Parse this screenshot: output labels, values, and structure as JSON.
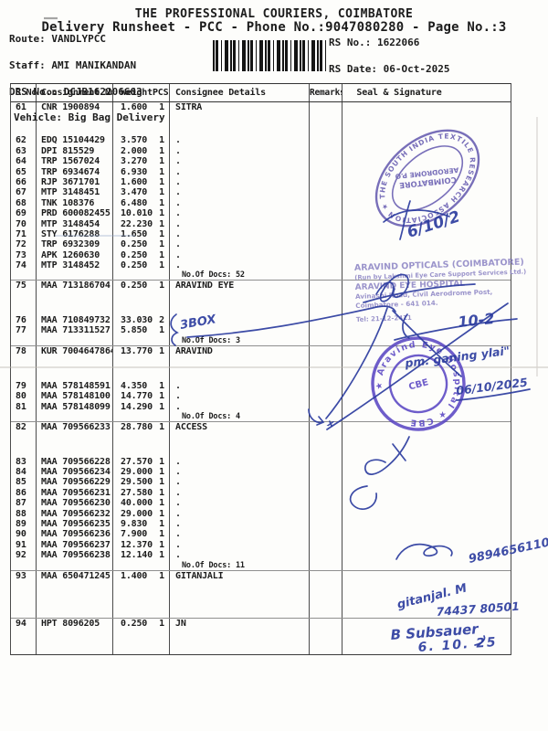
{
  "page_header": {
    "company": "THE PROFESSIONAL COURIERS, COIMBATORE",
    "runsheet_line": "Delivery Runsheet - PCC - Phone No.:9047080280 - Page No.:3",
    "route_label": "Route: ",
    "route_value": "VANDLYPCC",
    "staff_label": "Staff: ",
    "staff_value": "AMI MANIKANDAN",
    "drs_label": "DRS No.: ",
    "drs_value": "DCJB162206603",
    "vehicle_label": "Vehicle: ",
    "vehicle_value": "Big Bag Delivery",
    "rs_no_label": "RS No.: ",
    "rs_no_value": "1622066",
    "rs_date_label": "RS Date: ",
    "rs_date_value": "06-Oct-2025",
    "barcode": "barcode"
  },
  "table": {
    "headers": {
      "sno": "S No",
      "consignment": "Consignment No",
      "weight": "Weight",
      "pcs": "PCS",
      "consignee": "Consignee Details",
      "remarks": "Remarks",
      "seal": "Seal & Signature"
    },
    "groups": [
      {
        "gap_after_first": 25,
        "docs": "No.Of Docs: 52",
        "rows": [
          [
            "61",
            "CNR 1900894",
            "1.600",
            "1",
            "SITRA"
          ],
          [
            "62",
            "EDQ 15104429",
            "3.570",
            "1",
            "."
          ],
          [
            "63",
            "DPI 815529",
            "2.000",
            "1",
            "."
          ],
          [
            "64",
            "TRP 1567024",
            "3.270",
            "1",
            "."
          ],
          [
            "65",
            "TRP 6934674",
            "6.930",
            "1",
            "."
          ],
          [
            "66",
            "RJP 3671701",
            "1.600",
            "1",
            "."
          ],
          [
            "67",
            "MTP 3148451",
            "3.470",
            "1",
            "."
          ],
          [
            "68",
            "TNK 108376",
            "6.480",
            "1",
            "."
          ],
          [
            "69",
            "PRD 600082455",
            "10.010",
            "1",
            "."
          ],
          [
            "70",
            "MTP 3148454",
            "22.230",
            "1",
            "."
          ],
          [
            "71",
            "STY 6176288",
            "1.650",
            "1",
            "."
          ],
          [
            "72",
            "TRP 6932309",
            "0.250",
            "1",
            "."
          ],
          [
            "73",
            "APK 1260630",
            "0.250",
            "1",
            "."
          ],
          [
            "74",
            "MTP 3148452",
            "0.250",
            "1",
            "."
          ]
        ]
      },
      {
        "gap_after_first": 26,
        "docs": "No.Of Docs: 3",
        "rows": [
          [
            "75",
            "MAA 713186704",
            "0.250",
            "1",
            "ARAVIND EYE"
          ],
          [
            "76",
            "MAA 710849732",
            "33.030",
            "2",
            ""
          ],
          [
            "77",
            "MAA 713311527",
            "5.850",
            "1",
            ""
          ]
        ]
      },
      {
        "gap_after_first": 27,
        "docs": "No.Of Docs: 4",
        "rows": [
          [
            "78",
            "KUR 7004647864",
            "13.770",
            "1",
            "ARAVIND"
          ],
          [
            "79",
            "MAA 578148591",
            "4.350",
            "1",
            "."
          ],
          [
            "80",
            "MAA 578148100",
            "14.770",
            "1",
            "."
          ],
          [
            "81",
            "MAA 578148099",
            "14.290",
            "1",
            "."
          ]
        ]
      },
      {
        "gap_after_first": 26,
        "docs": "No.Of Docs: 11",
        "rows": [
          [
            "82",
            "MAA 709566233",
            "28.780",
            "1",
            "ACCESS"
          ],
          [
            "83",
            "MAA 709566228",
            "27.570",
            "1",
            "."
          ],
          [
            "84",
            "MAA 709566234",
            "29.000",
            "1",
            "."
          ],
          [
            "85",
            "MAA 709566229",
            "29.500",
            "1",
            "."
          ],
          [
            "86",
            "MAA 709566231",
            "27.580",
            "1",
            "."
          ],
          [
            "87",
            "MAA 709566230",
            "40.000",
            "1",
            "."
          ],
          [
            "88",
            "MAA 709566232",
            "29.000",
            "1",
            "."
          ],
          [
            "89",
            "MAA 709566235",
            "9.830",
            "1",
            "."
          ],
          [
            "90",
            "MAA 709566236",
            "7.900",
            "1",
            "."
          ],
          [
            "91",
            "MAA 709566237",
            "12.370",
            "1",
            "."
          ],
          [
            "92",
            "MAA 709566238",
            "12.140",
            "1",
            "."
          ]
        ]
      },
      {
        "tail_gap": 40,
        "rows": [
          [
            "93",
            "MAA 650471245",
            "1.400",
            "1",
            "GITANJALI"
          ]
        ]
      },
      {
        "tail_gap": 28,
        "rows": [
          [
            "94",
            "HPT 8096205",
            "0.250",
            "1",
            "JN"
          ]
        ]
      }
    ]
  },
  "stamps": {
    "oval_stamp": {
      "ring_text": "★ THE SOUTH INDIA TEXTILE RESEARCH ASSOCIATION",
      "center_line1": "COIMBATORE",
      "center_line2": "AERODROME P.O",
      "color": "#5c50ab"
    },
    "opticals_stamp": {
      "line1": "ARAVIND OPTICALS (COIMBATORE)",
      "line2": "(Run by Lakshmi Eye Care Support Services Ltd.)",
      "line3": "ARAVIND EYE HOSPITAL",
      "line4": "Avinashi Road, Civil Aerodrome Post,",
      "line5": "Coimbatore - 641 014.",
      "line6": "Tel: 21-12-2411",
      "color": "#837bc0"
    },
    "round_stamp": {
      "ring_text": "★ Aravind Eye Hospital ★ CBE",
      "center_text": "CBE",
      "color": "#5b47c4"
    }
  },
  "handwriting": {
    "ink_color": "#2c3c9f",
    "date_top": "6/10/2",
    "box_note": "3BOX",
    "date_mid": "10-2",
    "note_mid": "pm. ganing ylai\"",
    "date_stamp": "06/10/2025",
    "arrow_mark": "x",
    "phone1": "9894656110",
    "name1": "gitanjal. M",
    "phone2": "74437 80501",
    "name2": "B Subsauer",
    "date_bottom": "6. 10. 25"
  }
}
